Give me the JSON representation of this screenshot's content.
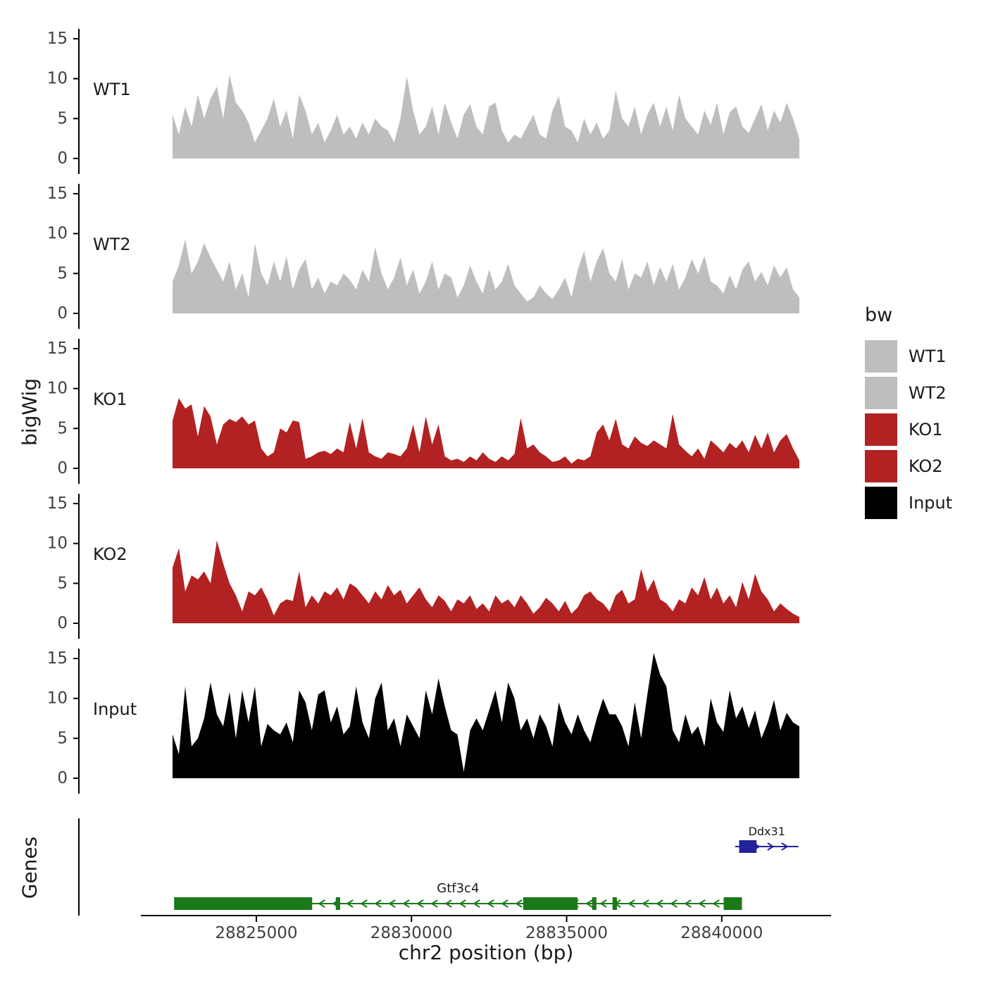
{
  "figure": {
    "y_axis_label": "bigWig",
    "genes_axis_label": "Genes",
    "x_axis_label": "chr2 position (bp)"
  },
  "legend": {
    "title": "bw",
    "items": [
      {
        "label": "WT1",
        "color": "#bebebe"
      },
      {
        "label": "WT2",
        "color": "#bebebe"
      },
      {
        "label": "KO1",
        "color": "#b22222"
      },
      {
        "label": "KO2",
        "color": "#b22222"
      },
      {
        "label": "Input",
        "color": "#000000"
      }
    ]
  },
  "chart_data": {
    "type": "area",
    "title": "",
    "xlabel": "chr2 position (bp)",
    "ylabel": "bigWig",
    "x_range": [
      28822300,
      28842500
    ],
    "x_ticks": [
      28825000,
      28830000,
      28835000,
      28840000
    ],
    "y_ticks": [
      0,
      5,
      10,
      15
    ],
    "ylim": [
      0,
      16
    ],
    "grid": false,
    "legend_position": "right",
    "tracks": [
      {
        "name": "WT1",
        "color": "#bebebe",
        "values": [
          5.5,
          3,
          6.5,
          4,
          8,
          5,
          7.5,
          9,
          5,
          10.5,
          7,
          6,
          4.5,
          2,
          3.5,
          5,
          7.5,
          4,
          6,
          2.5,
          8,
          6,
          3,
          4.5,
          2,
          3.5,
          5.5,
          3,
          4,
          2.5,
          4.5,
          3,
          5,
          4,
          3.5,
          2,
          5,
          10.3,
          6,
          3,
          4,
          6.5,
          3,
          7,
          4.5,
          2.5,
          5.5,
          6.8,
          4,
          3,
          6.5,
          7,
          3.5,
          2,
          3,
          2.5,
          4,
          5.5,
          3,
          2.5,
          6,
          7.8,
          4,
          3.5,
          2,
          5,
          3,
          4.5,
          2.5,
          3.5,
          8.5,
          5,
          4,
          6.5,
          3,
          5.5,
          7,
          4,
          6.5,
          3.5,
          8,
          5,
          4,
          3,
          6,
          4.2,
          7,
          3,
          5.8,
          6.5,
          4,
          3.2,
          5,
          6.8,
          3.5,
          6,
          4.5,
          7,
          5,
          2.5
        ]
      },
      {
        "name": "WT2",
        "color": "#bebebe",
        "values": [
          4,
          6,
          9.3,
          5,
          6.5,
          8.8,
          7,
          5.5,
          4,
          6.5,
          3,
          5,
          2,
          8.8,
          5,
          3.5,
          6.5,
          4,
          7.2,
          3,
          5.5,
          6.8,
          3,
          4.5,
          2.5,
          4,
          3.5,
          5,
          4.2,
          3,
          5.5,
          4,
          8.3,
          5,
          3,
          4.5,
          7,
          3.5,
          5.5,
          2.5,
          4,
          6.5,
          3,
          5,
          4.5,
          2,
          3.5,
          6,
          4,
          2.5,
          5.5,
          3,
          4,
          6.2,
          3.5,
          2.5,
          1.5,
          2,
          3.5,
          2.5,
          1.8,
          3,
          4.5,
          2,
          5.5,
          7.8,
          4,
          6.5,
          8.2,
          5,
          4,
          6.8,
          3,
          5,
          4.5,
          6.5,
          3.5,
          5.8,
          4,
          6.2,
          3,
          4.5,
          6.8,
          5,
          7.2,
          4,
          3.5,
          2.5,
          4.8,
          3,
          5.5,
          6.5,
          4,
          5.2,
          3.5,
          6,
          4.5,
          5.8,
          3,
          2
        ]
      },
      {
        "name": "KO1",
        "color": "#b22222",
        "values": [
          6,
          8.8,
          7.5,
          8,
          4,
          7.8,
          6.5,
          3,
          5.5,
          6.2,
          5.8,
          6.5,
          5.5,
          6,
          2.5,
          1.5,
          2,
          5,
          4.5,
          6,
          5.8,
          1.2,
          1.5,
          2,
          2.2,
          1.8,
          2.5,
          2,
          5.8,
          2.5,
          6.3,
          2,
          1.5,
          1.2,
          2,
          1.8,
          1.5,
          2.5,
          5.5,
          2,
          6.5,
          3,
          5.5,
          1.5,
          1,
          1.2,
          0.8,
          1.5,
          1,
          2,
          1.2,
          0.8,
          1.5,
          1,
          1.8,
          6.3,
          2.5,
          3,
          2,
          1.5,
          0.8,
          1,
          1.5,
          0.6,
          1.2,
          1,
          1.5,
          4.5,
          5.5,
          3.5,
          6.2,
          3,
          2.5,
          4,
          3.2,
          2.8,
          3.5,
          3,
          2.5,
          6.8,
          3,
          2.2,
          1.5,
          2.5,
          1.2,
          3.5,
          2.8,
          2,
          3.2,
          2.5,
          3.5,
          2,
          4.2,
          2.5,
          4.5,
          2,
          3.5,
          4.3,
          2.5,
          1
        ]
      },
      {
        "name": "KO2",
        "color": "#b22222",
        "values": [
          7,
          9.4,
          4,
          6,
          5.5,
          6.5,
          5,
          10.4,
          7.5,
          5,
          3.5,
          1.5,
          4,
          3.5,
          4.5,
          3,
          1,
          2.5,
          3,
          2.8,
          6.5,
          2,
          3.5,
          2.5,
          4,
          3.5,
          4.5,
          3,
          5,
          4.5,
          3.5,
          2.5,
          4,
          3,
          4.8,
          3.5,
          4.2,
          2.5,
          3.5,
          4.5,
          3,
          2,
          3.5,
          2.8,
          1.5,
          3,
          2.5,
          3.5,
          1.8,
          2.5,
          1.5,
          3.5,
          2.5,
          3,
          2,
          3.5,
          2.5,
          1.2,
          2,
          3.2,
          2.5,
          1.5,
          2.8,
          1.2,
          2,
          3.5,
          4,
          3,
          2.5,
          1.5,
          3.5,
          4.2,
          2.5,
          3,
          6.8,
          4,
          5.5,
          3,
          2.5,
          1.5,
          3,
          2.5,
          4.5,
          3.5,
          5.8,
          3,
          4.5,
          2.5,
          3.5,
          2,
          5.2,
          3,
          6.2,
          4,
          3,
          1.5,
          2.5,
          1.8,
          1.2,
          0.8
        ]
      },
      {
        "name": "Input",
        "color": "#000000",
        "values": [
          5.5,
          3,
          11.5,
          4,
          5,
          7.5,
          12,
          8,
          6.5,
          10.8,
          5,
          11,
          7,
          11.5,
          4,
          6.8,
          6,
          5.5,
          7,
          4.5,
          11,
          9.5,
          6,
          10.5,
          11,
          7,
          9,
          5.5,
          6.5,
          11.5,
          7,
          5,
          10,
          12,
          6,
          7.5,
          4,
          8,
          6.5,
          5,
          11,
          8,
          12.5,
          9,
          6,
          5.5,
          0.8,
          6,
          7.5,
          6,
          8.5,
          11,
          7,
          12,
          10,
          6,
          7.5,
          5,
          8,
          6.5,
          4,
          9.5,
          7,
          5.5,
          8,
          6,
          4.5,
          7.5,
          10,
          8,
          8,
          6.5,
          4,
          9.5,
          5,
          10.5,
          15.7,
          13,
          11.5,
          6,
          4.5,
          8,
          5.5,
          6.5,
          4,
          10,
          7,
          5.8,
          11,
          7.5,
          9,
          6.3,
          8.5,
          5,
          7,
          9.8,
          6,
          8.2,
          7,
          6.5
        ]
      }
    ],
    "genes": [
      {
        "name": "Ddx31",
        "strand": "+",
        "color": "#22229b",
        "row": 0,
        "start": 28840430,
        "end": 28842470,
        "exons": [
          [
            28840560,
            28841120
          ]
        ],
        "label_size": 16
      },
      {
        "name": "Gtf3c4",
        "strand": "-",
        "color": "#1a7a1a",
        "row": 1,
        "start": 28822350,
        "end": 28840650,
        "exons": [
          [
            28822350,
            28826800
          ],
          [
            28827560,
            28827700
          ],
          [
            28833600,
            28835350
          ],
          [
            28835820,
            28835960
          ],
          [
            28836480,
            28836620
          ],
          [
            28840060,
            28840650
          ]
        ],
        "label_size": 18
      }
    ]
  }
}
